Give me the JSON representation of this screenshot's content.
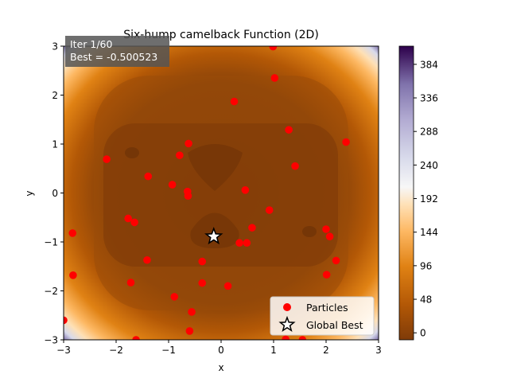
{
  "chart_data": {
    "type": "scatter",
    "title": "Six-hump camelback Function (2D)",
    "xlabel": "x",
    "ylabel": "y",
    "xlim": [
      -3,
      3
    ],
    "ylim": [
      -3,
      3
    ],
    "xticks": [
      -3,
      -2,
      -1,
      0,
      1,
      2,
      3
    ],
    "yticks": [
      -3,
      -2,
      -1,
      0,
      1,
      2,
      3
    ],
    "annotation": {
      "line1": "Iter 1/60",
      "line2": "Best = -0.500523",
      "placement": "top-left"
    },
    "legend": {
      "placement": "lower-right",
      "entries": [
        {
          "label": "Particles",
          "marker": "circle",
          "color": "#ff0000"
        },
        {
          "label": "Global Best",
          "marker": "star",
          "color": "#ffffff"
        }
      ]
    },
    "colorbar": {
      "colormap": "PuOr",
      "range": [
        -10,
        410
      ],
      "ticks": [
        0,
        48,
        96,
        144,
        192,
        240,
        288,
        336,
        384
      ]
    },
    "series": [
      {
        "name": "Particles",
        "points": [
          [
            -3.0,
            -2.6
          ],
          [
            -2.83,
            -0.82
          ],
          [
            -2.82,
            -1.68
          ],
          [
            -2.18,
            0.69
          ],
          [
            -1.77,
            -0.52
          ],
          [
            -1.72,
            -1.83
          ],
          [
            -1.65,
            -0.6
          ],
          [
            -1.62,
            -3.0
          ],
          [
            -1.41,
            -1.37
          ],
          [
            -1.39,
            0.34
          ],
          [
            -0.93,
            0.17
          ],
          [
            -0.89,
            -2.12
          ],
          [
            -0.79,
            0.77
          ],
          [
            -0.64,
            0.03
          ],
          [
            -0.63,
            -0.06
          ],
          [
            -0.62,
            1.01
          ],
          [
            -0.6,
            -2.82
          ],
          [
            -0.56,
            -2.43
          ],
          [
            -0.36,
            -1.4
          ],
          [
            -0.36,
            -1.84
          ],
          [
            0.13,
            -1.9
          ],
          [
            0.25,
            1.87
          ],
          [
            0.35,
            -1.02
          ],
          [
            0.46,
            0.06
          ],
          [
            0.49,
            -1.02
          ],
          [
            0.59,
            -0.71
          ],
          [
            0.92,
            -0.35
          ],
          [
            0.99,
            2.99
          ],
          [
            1.02,
            2.35
          ],
          [
            1.23,
            -2.99
          ],
          [
            1.29,
            1.29
          ],
          [
            1.41,
            0.55
          ],
          [
            1.55,
            -3.0
          ],
          [
            2.0,
            -0.74
          ],
          [
            2.01,
            -1.67
          ],
          [
            2.07,
            -0.89
          ],
          [
            2.19,
            -1.38
          ],
          [
            2.38,
            1.04
          ]
        ]
      },
      {
        "name": "Global Best",
        "points": [
          [
            -0.14,
            -0.89
          ]
        ]
      }
    ]
  }
}
